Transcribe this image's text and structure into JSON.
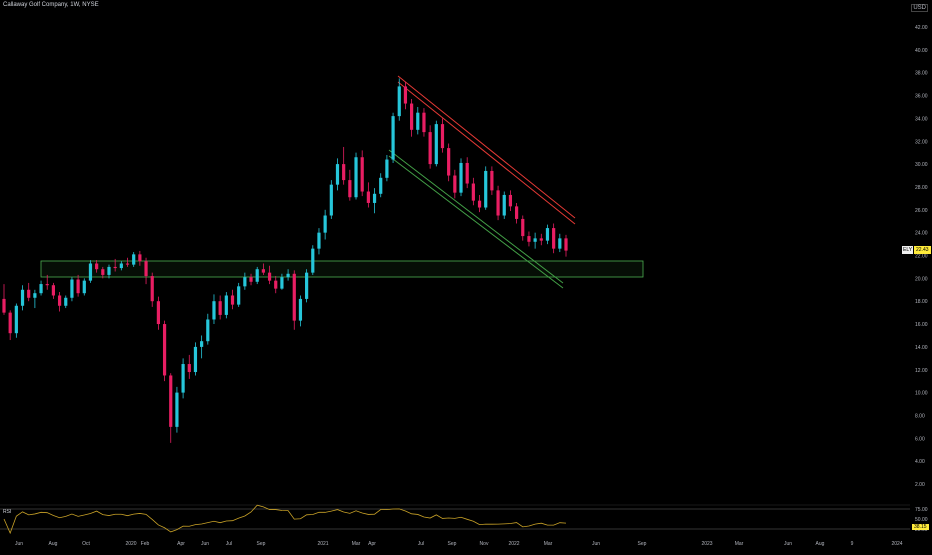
{
  "header": {
    "title": "Callaway Golf Company, 1W, NYSE",
    "currency": "USD"
  },
  "price_tag": {
    "symbol": "ELY",
    "value": "22.43",
    "color": "#ffeb3b"
  },
  "rsi": {
    "label": "RSI",
    "value": "38.15",
    "levels": [
      "75.00",
      "50.00",
      "25.00"
    ]
  },
  "colors": {
    "up": "#26c6da",
    "down": "#e91e63",
    "channel_upper": "#e53935",
    "channel_lower": "#43a047",
    "zone": "#4caf50",
    "rsi_line": "#c9a227"
  },
  "chart_data": {
    "type": "candlestick",
    "title": "Callaway Golf Company, 1W, NYSE",
    "y_ticks": [
      "42.00",
      "40.00",
      "38.00",
      "36.00",
      "34.00",
      "32.00",
      "30.00",
      "28.00",
      "26.00",
      "24.00",
      "22.00",
      "20.00",
      "18.00",
      "16.00",
      "14.00",
      "12.00",
      "10.00",
      "8.00",
      "6.00",
      "4.00",
      "2.00"
    ],
    "x_ticks": [
      "Jun",
      "Aug",
      "Oct",
      "2020",
      "Feb",
      "Apr",
      "Jun",
      "Jul",
      "Sep",
      "2021",
      "Mar",
      "Apr",
      "Jul",
      "Sep",
      "Nov",
      "2022",
      "Mar",
      "Jun",
      "Sep",
      "2023",
      "Mar",
      "Jun",
      "Aug",
      "9",
      "2024"
    ],
    "ylim": [
      0,
      44
    ],
    "candles": [
      [
        18.2,
        19.5,
        16.8,
        17.0
      ],
      [
        17.0,
        17.2,
        14.6,
        15.2
      ],
      [
        15.2,
        17.8,
        14.8,
        17.6
      ],
      [
        17.6,
        19.4,
        17.2,
        19.0
      ],
      [
        19.0,
        19.6,
        18.0,
        18.3
      ],
      [
        18.3,
        19.0,
        17.4,
        18.7
      ],
      [
        18.7,
        19.8,
        18.5,
        19.5
      ],
      [
        19.5,
        20.3,
        19.0,
        19.4
      ],
      [
        19.4,
        19.6,
        18.2,
        18.5
      ],
      [
        18.5,
        18.8,
        17.1,
        17.6
      ],
      [
        17.6,
        18.5,
        17.4,
        18.3
      ],
      [
        18.3,
        20.1,
        18.0,
        19.9
      ],
      [
        19.9,
        20.3,
        18.4,
        18.7
      ],
      [
        18.7,
        20.0,
        18.5,
        19.8
      ],
      [
        19.8,
        21.6,
        19.6,
        21.3
      ],
      [
        21.3,
        21.6,
        20.5,
        20.8
      ],
      [
        20.8,
        21.0,
        20.0,
        20.3
      ],
      [
        20.3,
        21.2,
        20.0,
        21.0
      ],
      [
        21.0,
        21.7,
        20.6,
        20.9
      ],
      [
        20.9,
        21.5,
        20.7,
        21.3
      ],
      [
        21.3,
        21.8,
        21.0,
        21.2
      ],
      [
        21.2,
        22.3,
        21.0,
        22.1
      ],
      [
        22.1,
        22.4,
        21.1,
        21.5
      ],
      [
        21.5,
        21.8,
        19.5,
        20.2
      ],
      [
        20.2,
        20.5,
        17.5,
        18.0
      ],
      [
        18.0,
        18.4,
        15.5,
        16.0
      ],
      [
        16.0,
        16.3,
        11.0,
        11.5
      ],
      [
        11.5,
        11.7,
        5.6,
        7.0
      ],
      [
        7.0,
        10.5,
        6.5,
        10.0
      ],
      [
        10.0,
        13.0,
        9.5,
        12.5
      ],
      [
        12.5,
        13.3,
        11.2,
        11.8
      ],
      [
        11.8,
        14.4,
        11.5,
        14.0
      ],
      [
        14.0,
        15.0,
        13.0,
        14.5
      ],
      [
        14.5,
        16.9,
        14.2,
        16.4
      ],
      [
        16.4,
        18.6,
        16.0,
        18.0
      ],
      [
        18.0,
        18.5,
        16.4,
        16.8
      ],
      [
        16.8,
        18.8,
        16.5,
        18.5
      ],
      [
        18.5,
        19.0,
        17.3,
        17.7
      ],
      [
        17.7,
        19.6,
        17.5,
        19.3
      ],
      [
        19.3,
        20.5,
        19.0,
        20.1
      ],
      [
        20.1,
        20.4,
        19.4,
        19.7
      ],
      [
        19.7,
        21.0,
        19.5,
        20.8
      ],
      [
        20.8,
        21.3,
        20.3,
        20.5
      ],
      [
        20.5,
        21.1,
        19.5,
        19.8
      ],
      [
        19.8,
        20.2,
        18.7,
        19.1
      ],
      [
        19.1,
        20.4,
        19.0,
        20.1
      ],
      [
        20.1,
        20.8,
        19.8,
        20.4
      ],
      [
        20.4,
        20.7,
        15.5,
        16.3
      ],
      [
        16.3,
        18.5,
        15.8,
        18.2
      ],
      [
        18.2,
        20.8,
        17.9,
        20.5
      ],
      [
        20.5,
        22.9,
        20.3,
        22.6
      ],
      [
        22.6,
        24.4,
        22.1,
        24.0
      ],
      [
        24.0,
        26.0,
        23.4,
        25.5
      ],
      [
        25.5,
        28.6,
        25.2,
        28.2
      ],
      [
        28.2,
        30.5,
        27.7,
        30.0
      ],
      [
        30.0,
        31.5,
        28.2,
        28.6
      ],
      [
        28.6,
        29.5,
        26.8,
        27.1
      ],
      [
        27.1,
        31.0,
        26.9,
        30.6
      ],
      [
        30.6,
        31.2,
        27.2,
        27.6
      ],
      [
        27.6,
        28.4,
        26.2,
        26.6
      ],
      [
        26.6,
        27.9,
        25.7,
        27.4
      ],
      [
        27.4,
        29.2,
        27.1,
        28.8
      ],
      [
        28.8,
        30.8,
        28.5,
        30.4
      ],
      [
        30.4,
        34.5,
        30.1,
        34.2
      ],
      [
        34.2,
        37.5,
        33.8,
        36.8
      ],
      [
        36.8,
        37.2,
        34.8,
        35.3
      ],
      [
        35.3,
        35.7,
        32.4,
        33.0
      ],
      [
        33.0,
        35.0,
        32.6,
        34.5
      ],
      [
        34.5,
        34.9,
        32.4,
        32.8
      ],
      [
        32.8,
        33.4,
        29.6,
        30.0
      ],
      [
        30.0,
        33.8,
        29.8,
        33.5
      ],
      [
        33.5,
        34.0,
        31.0,
        31.4
      ],
      [
        31.4,
        31.8,
        28.5,
        29.0
      ],
      [
        29.0,
        29.5,
        27.0,
        27.5
      ],
      [
        27.5,
        30.5,
        27.2,
        30.1
      ],
      [
        30.1,
        30.6,
        27.9,
        28.3
      ],
      [
        28.3,
        28.8,
        26.4,
        26.8
      ],
      [
        26.8,
        27.3,
        25.8,
        26.2
      ],
      [
        26.2,
        29.8,
        26.0,
        29.4
      ],
      [
        29.4,
        29.8,
        27.3,
        27.7
      ],
      [
        27.7,
        28.1,
        25.1,
        25.5
      ],
      [
        25.5,
        27.6,
        25.2,
        27.3
      ],
      [
        27.3,
        27.7,
        25.9,
        26.3
      ],
      [
        26.3,
        26.6,
        24.8,
        25.2
      ],
      [
        25.2,
        25.5,
        23.3,
        23.7
      ],
      [
        23.7,
        24.1,
        22.8,
        23.2
      ],
      [
        23.2,
        24.0,
        22.6,
        23.5
      ],
      [
        23.5,
        23.9,
        22.9,
        23.3
      ],
      [
        23.3,
        24.7,
        23.0,
        24.4
      ],
      [
        24.4,
        24.8,
        22.2,
        22.6
      ],
      [
        22.6,
        23.9,
        22.3,
        23.5
      ],
      [
        23.5,
        23.8,
        21.9,
        22.43
      ]
    ]
  }
}
